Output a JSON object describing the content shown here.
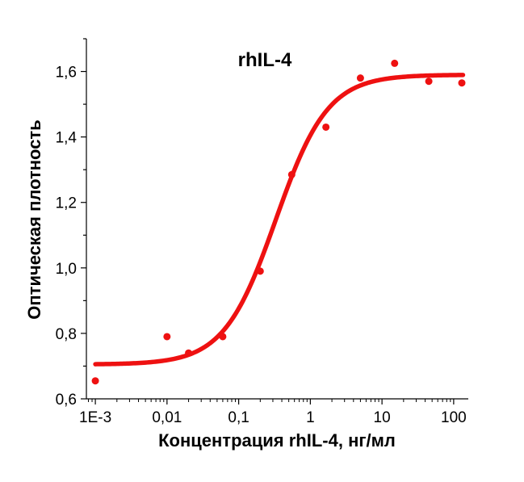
{
  "chart_data": {
    "type": "scatter",
    "title": "rhIL-4",
    "xlabel": "Концентрация rhIL-4, нг/мл",
    "ylabel": "Оптическая плотность",
    "x_scale": "log",
    "xlim": [
      0.00075,
      160
    ],
    "ylim": [
      0.6,
      1.7
    ],
    "x_ticks": [
      {
        "value": 0.001,
        "label": "1E-3"
      },
      {
        "value": 0.01,
        "label": "0,01"
      },
      {
        "value": 0.1,
        "label": "0,1"
      },
      {
        "value": 1,
        "label": "1"
      },
      {
        "value": 10,
        "label": "10"
      },
      {
        "value": 100,
        "label": "100"
      }
    ],
    "y_ticks": [
      {
        "value": 0.6,
        "label": "0,6"
      },
      {
        "value": 0.8,
        "label": "0,8"
      },
      {
        "value": 1.0,
        "label": "1,0"
      },
      {
        "value": 1.2,
        "label": "1,2"
      },
      {
        "value": 1.4,
        "label": "1,4"
      },
      {
        "value": 1.6,
        "label": "1,6"
      }
    ],
    "grid": false,
    "color": "#ee1111",
    "series": [
      {
        "points": [
          {
            "x": 0.001,
            "y": 0.655
          },
          {
            "x": 0.01,
            "y": 0.79
          },
          {
            "x": 0.02,
            "y": 0.74
          },
          {
            "x": 0.06,
            "y": 0.79
          },
          {
            "x": 0.2,
            "y": 0.99
          },
          {
            "x": 0.55,
            "y": 1.285
          },
          {
            "x": 1.65,
            "y": 1.43
          },
          {
            "x": 5,
            "y": 1.58
          },
          {
            "x": 15,
            "y": 1.625
          },
          {
            "x": 45,
            "y": 1.57
          },
          {
            "x": 130,
            "y": 1.565
          }
        ]
      }
    ],
    "fit": {
      "type": "4-parameter logistic",
      "bottom": 0.705,
      "top": 1.59,
      "ec50": 0.33,
      "hill": 1.2,
      "x_range": [
        0.001,
        135
      ]
    }
  }
}
